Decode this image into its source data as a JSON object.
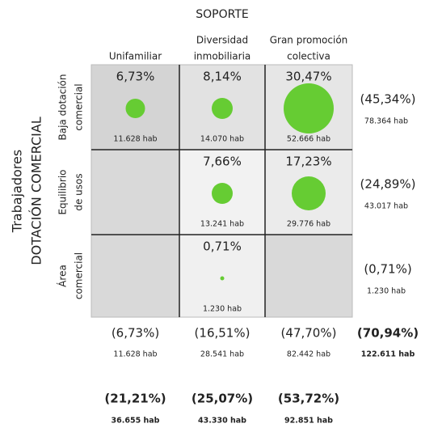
{
  "header": "SOPORTE",
  "side_label": [
    "Trabajadores",
    "DOTACIÓN COMERCIAL"
  ],
  "columns": [
    [
      "Unifamiliar"
    ],
    [
      "Diversidad",
      "inmobiliaria"
    ],
    [
      "Gran promoción",
      "colectiva"
    ]
  ],
  "rows": [
    {
      "label": [
        "Baja dotación",
        "comercial"
      ],
      "cells": [
        {
          "pct": "6,73%",
          "hab": "11.628 hab"
        },
        {
          "pct": "8,14%",
          "hab": "14.070 hab"
        },
        {
          "pct": "30,47%",
          "hab": "52.666 hab"
        }
      ],
      "total": {
        "pct": "(45,34%)",
        "hab": "78.364 hab"
      }
    },
    {
      "label": [
        "Equilibrio",
        "de usos"
      ],
      "cells": [
        null,
        {
          "pct": "7,66%",
          "hab": "13.241 hab"
        },
        {
          "pct": "17,23%",
          "hab": "29.776 hab"
        }
      ],
      "total": {
        "pct": "(24,89%)",
        "hab": "43.017 hab"
      }
    },
    {
      "label": [
        "Área",
        "comercial"
      ],
      "cells": [
        null,
        {
          "pct": "0,71%",
          "hab": "1.230 hab"
        },
        null
      ],
      "total": {
        "pct": "(0,71%)",
        "hab": "1.230 hab"
      }
    }
  ],
  "column_totals": [
    {
      "pct": "(6,73%)",
      "hab": "11.628 hab"
    },
    {
      "pct": "(16,51%)",
      "hab": "28.541 hab"
    },
    {
      "pct": "(47,70%)",
      "hab": "82.442 hab"
    }
  ],
  "grand_total": {
    "pct": "(70,94%)",
    "hab": "122.611 hab"
  },
  "soporte_totals": [
    {
      "pct": "(21,21%)",
      "hab": "36.655 hab"
    },
    {
      "pct": "(25,07%)",
      "hab": "43.330 hab"
    },
    {
      "pct": "(53,72%)",
      "hab": "92.851 hab"
    }
  ]
}
